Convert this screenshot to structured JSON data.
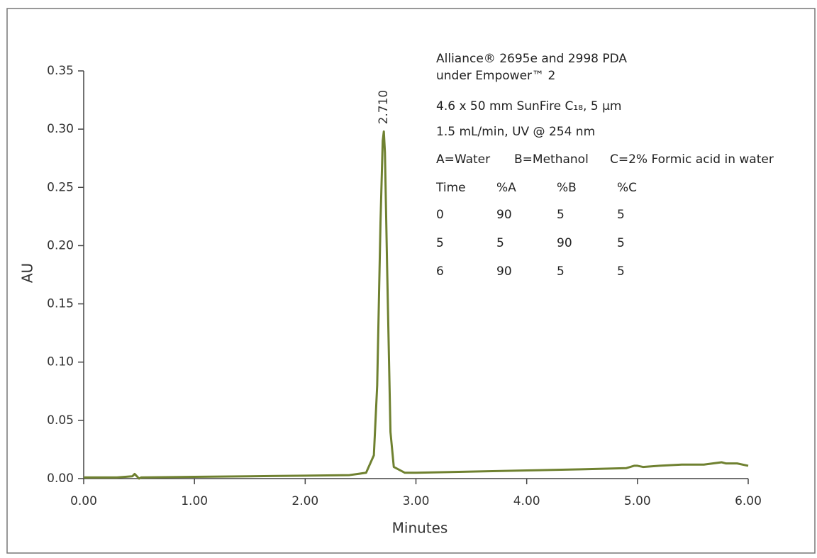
{
  "chart_data": {
    "type": "line",
    "xlabel": "Minutes",
    "ylabel": "AU",
    "color": "#6f8130",
    "xlim": [
      0,
      6
    ],
    "ylim": [
      0,
      0.35
    ],
    "xticks": [
      {
        "value": 0,
        "label": "0.00"
      },
      {
        "value": 1,
        "label": "1.00"
      },
      {
        "value": 2,
        "label": "2.00"
      },
      {
        "value": 3,
        "label": "3.00"
      },
      {
        "value": 4,
        "label": "4.00"
      },
      {
        "value": 5,
        "label": "5.00"
      },
      {
        "value": 6,
        "label": "6.00"
      }
    ],
    "yticks": [
      {
        "value": 0,
        "label": "0.00"
      },
      {
        "value": 0.05,
        "label": "0.05"
      },
      {
        "value": 0.1,
        "label": "0.10"
      },
      {
        "value": 0.15,
        "label": "0.15"
      },
      {
        "value": 0.2,
        "label": "0.20"
      },
      {
        "value": 0.25,
        "label": "0.25"
      },
      {
        "value": 0.3,
        "label": "0.30"
      },
      {
        "value": 0.35,
        "label": "0.35"
      }
    ],
    "x": [
      0,
      0.3,
      0.44,
      0.46,
      0.48,
      0.5,
      0.52,
      1.0,
      1.5,
      2.0,
      2.4,
      2.55,
      2.62,
      2.65,
      2.68,
      2.7,
      2.71,
      2.72,
      2.74,
      2.77,
      2.8,
      2.9,
      3.0,
      3.5,
      4.0,
      4.5,
      4.9,
      4.97,
      5.0,
      5.05,
      5.2,
      5.4,
      5.6,
      5.76,
      5.8,
      5.9,
      6.0
    ],
    "values": [
      0.001,
      0.001,
      0.002,
      0.004,
      0.002,
      0.0,
      0.001,
      0.0015,
      0.002,
      0.0025,
      0.003,
      0.005,
      0.02,
      0.08,
      0.22,
      0.29,
      0.298,
      0.28,
      0.18,
      0.04,
      0.01,
      0.005,
      0.005,
      0.006,
      0.007,
      0.008,
      0.009,
      0.011,
      0.011,
      0.01,
      0.011,
      0.012,
      0.012,
      0.014,
      0.013,
      0.013,
      0.011
    ],
    "peak_label": {
      "x": 2.71,
      "y": 0.298,
      "text": "2.710"
    },
    "info": {
      "lines": [
        "Alliance® 2695e and 2998 PDA",
        "under Empower™ 2",
        "4.6 x 50 mm SunFire C₁₈, 5 µm",
        "1.5 mL/min, UV @ 254 nm"
      ],
      "solvents": [
        "A=Water",
        "B=Methanol",
        "C=2% Formic acid in water"
      ],
      "table_header": [
        "Time",
        "%A",
        "%B",
        "%C"
      ],
      "table_rows": [
        [
          0,
          90,
          5,
          5
        ],
        [
          5,
          5,
          90,
          5
        ],
        [
          6,
          90,
          5,
          5
        ]
      ]
    }
  }
}
